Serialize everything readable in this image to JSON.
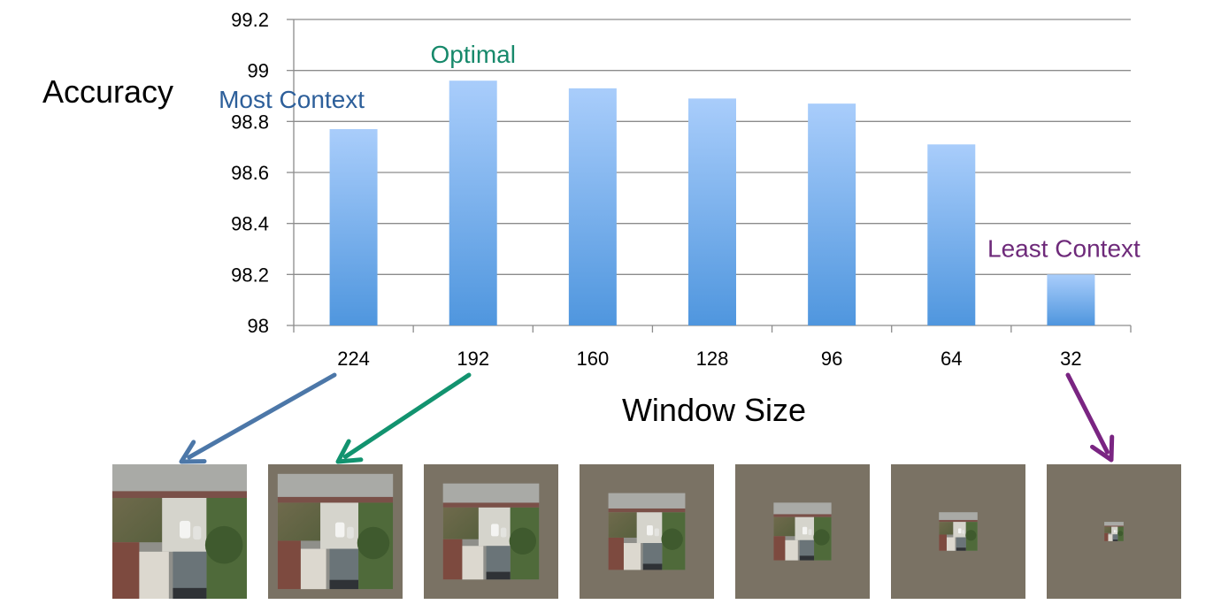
{
  "chart_data": {
    "type": "bar",
    "categories": [
      "224",
      "192",
      "160",
      "128",
      "96",
      "64",
      "32"
    ],
    "values": [
      98.77,
      98.96,
      98.93,
      98.89,
      98.87,
      98.71,
      98.2
    ],
    "xlabel": "Window Size",
    "ylabel": "Accuracy",
    "ylim": [
      98,
      99.2
    ],
    "yticks": [
      "98",
      "98.2",
      "98.4",
      "98.6",
      "98.8",
      "99",
      "99.2"
    ],
    "grid": true,
    "bar_gradient": [
      "#a9cdfb",
      "#4f96de"
    ],
    "annotations": [
      {
        "text": "Most Context",
        "category": "224",
        "color": "#2d5f9a"
      },
      {
        "text": "Optimal",
        "category": "192",
        "color": "#17896b"
      },
      {
        "text": "Least Context",
        "category": "32",
        "color": "#6e2a7a"
      }
    ],
    "arrows": [
      {
        "from_category": "224",
        "to_window": "224",
        "color": "#4c77a8"
      },
      {
        "from_category": "192",
        "to_window": "192",
        "color": "#12936f"
      },
      {
        "from_category": "32",
        "to_window": "32",
        "color": "#7a2582"
      }
    ]
  },
  "thumbnails": [
    {
      "window": "224",
      "fraction": 1.0
    },
    {
      "window": "192",
      "fraction": 0.857
    },
    {
      "window": "160",
      "fraction": 0.714
    },
    {
      "window": "128",
      "fraction": 0.571
    },
    {
      "window": "96",
      "fraction": 0.429
    },
    {
      "window": "64",
      "fraction": 0.286
    },
    {
      "window": "32",
      "fraction": 0.143
    }
  ],
  "colors": {
    "thumbnail_background": "#7a7264",
    "grid": "#8c8c8c"
  }
}
